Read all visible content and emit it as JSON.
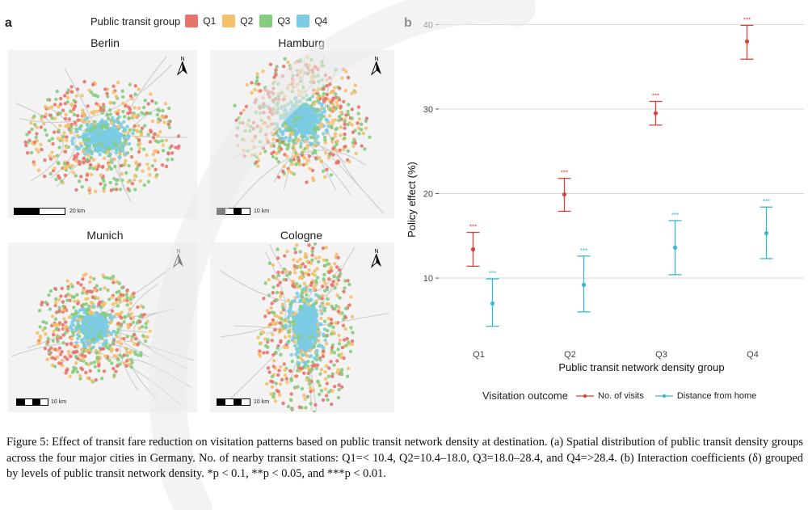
{
  "panel_a_label": "a",
  "panel_b_label": "b",
  "map_legend": {
    "title": "Public transit group",
    "items": [
      {
        "label": "Q1",
        "color": "#e8736b"
      },
      {
        "label": "Q2",
        "color": "#f4c06a"
      },
      {
        "label": "Q3",
        "color": "#85cc7e"
      },
      {
        "label": "Q4",
        "color": "#7ccbe4"
      }
    ]
  },
  "maps": [
    {
      "title": "Berlin",
      "scale": "20 km",
      "north": "N"
    },
    {
      "title": "Hamburg",
      "scale": "10 km",
      "north": "N"
    },
    {
      "title": "Munich",
      "scale": "10 km",
      "north": "N"
    },
    {
      "title": "Cologne",
      "scale": "10 km",
      "north": "N"
    }
  ],
  "chart_data": {
    "type": "scatter",
    "xlabel": "Public transit network density group",
    "ylabel": "Policy effect (%)",
    "categories": [
      "Q1",
      "Q2",
      "Q3",
      "Q4"
    ],
    "yticks": [
      10,
      20,
      30,
      40
    ],
    "ylim": [
      3.5,
      40.8
    ],
    "grid": true,
    "legend_title": "Visitation outcome",
    "legend_position": "bottom",
    "significance": "***",
    "series": [
      {
        "name": "No. of visits",
        "color": "#d9443a",
        "values": [
          13.4,
          19.9,
          29.5,
          38.0
        ],
        "lower": [
          11.4,
          17.9,
          28.1,
          35.9
        ],
        "upper": [
          15.4,
          21.8,
          30.9,
          39.9
        ]
      },
      {
        "name": "Distance from home",
        "color": "#3db6d1",
        "values": [
          7.0,
          9.2,
          13.6,
          15.3
        ],
        "lower": [
          4.3,
          6.0,
          10.4,
          12.3
        ],
        "upper": [
          9.9,
          12.6,
          16.8,
          18.4
        ]
      }
    ]
  },
  "caption": "Figure 5: Effect of transit fare reduction on visitation patterns based on public transit network density at destination. (a) Spatial distribution of public transit density groups across the four major cities in Germany. No. of nearby transit stations: Q1=< 10.4, Q2=10.4–18.0, Q3=18.0–28.4, and Q4=>28.4. (b) Interaction coefficients (δ) grouped by levels of public transit network density. *p < 0.1, **p < 0.05, and ***p < 0.01."
}
